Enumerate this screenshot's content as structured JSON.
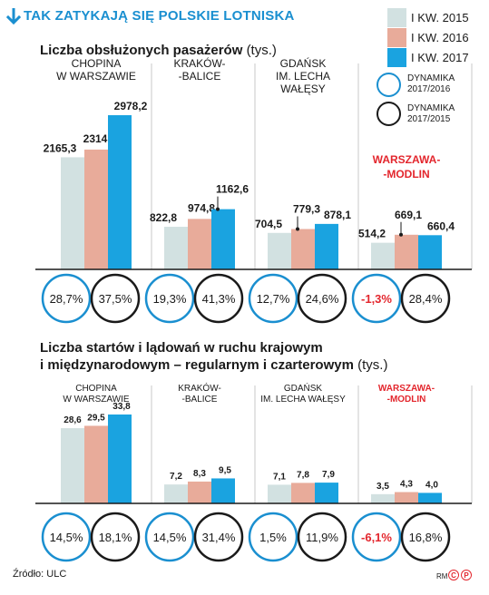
{
  "header": {
    "title": "TAK ZATYKAJĄ SIĘ POLSKIE LOTNISKA"
  },
  "legend": {
    "series": [
      {
        "label": "I KW. 2015",
        "color": "#d2e1e1"
      },
      {
        "label": "I KW. 2016",
        "color": "#e8ab9a"
      },
      {
        "label": "I KW. 2017",
        "color": "#1aa3e0"
      }
    ],
    "circles": [
      {
        "label_line1": "DYNAMIKA",
        "label_line2": "2017/2016",
        "color": "#1a8fd0"
      },
      {
        "label_line1": "DYNAMIKA",
        "label_line2": "2017/2015",
        "color": "#1a1a1a"
      }
    ]
  },
  "colors": {
    "accent": "#1a8fd0",
    "highlight": "#e3262d",
    "dark": "#1a1a1a"
  },
  "chart_data": [
    {
      "type": "bar",
      "title": "Liczba obsłużonych pasażerów",
      "unit": "(tys.)",
      "categories": [
        {
          "line1": "CHOPINA",
          "line2": "W WARSZAWIE",
          "line3": "",
          "highlight": false
        },
        {
          "line1": "KRAKÓW-",
          "line2": "-BALICE",
          "line3": "",
          "highlight": false
        },
        {
          "line1": "GDAŃSK",
          "line2": "IM. LECHA",
          "line3": "WAŁĘSY",
          "highlight": false
        },
        {
          "line1": "WARSZAWA-",
          "line2": "-MODLIN",
          "line3": "",
          "highlight": true
        }
      ],
      "series": [
        {
          "name": "I KW. 2015",
          "values": [
            2165.3,
            822.8,
            704.5,
            514.2
          ],
          "labels": [
            "2165,3",
            "822,8",
            "704,5",
            "514,2"
          ]
        },
        {
          "name": "I KW. 2016",
          "values": [
            2314.1,
            974.8,
            779.3,
            669.1
          ],
          "labels": [
            "2314,1",
            "974,8",
            "779,3",
            "669,1"
          ]
        },
        {
          "name": "I KW. 2017",
          "values": [
            2978.2,
            1162.6,
            878.1,
            660.4
          ],
          "labels": [
            "2978,2",
            "1162,6",
            "878,1",
            "660,4"
          ]
        }
      ],
      "dynamika_2017_2016": [
        "28,7%",
        "19,3%",
        "12,7%",
        "-1,3%"
      ],
      "dynamika_2017_2015": [
        "37,5%",
        "41,3%",
        "24,6%",
        "28,4%"
      ],
      "ylim": [
        0,
        2978.2
      ]
    },
    {
      "type": "bar",
      "title": "Liczba startów i lądowań w ruchu krajowym",
      "title_line2": "i międzynarodowym – regularnym i czarterowym",
      "unit": "(tys.)",
      "categories": [
        {
          "line1": "CHOPINA",
          "line2": "W WARSZAWIE",
          "line3": "",
          "highlight": false
        },
        {
          "line1": "KRAKÓW-",
          "line2": "-BALICE",
          "line3": "",
          "highlight": false
        },
        {
          "line1": "GDAŃSK",
          "line2": "IM. LECHA WAŁĘSY",
          "line3": "",
          "highlight": false
        },
        {
          "line1": "WARSZAWA-",
          "line2": "-MODLIN",
          "line3": "",
          "highlight": true
        }
      ],
      "series": [
        {
          "name": "I KW. 2015",
          "values": [
            28.6,
            7.2,
            7.1,
            3.5
          ],
          "labels": [
            "28,6",
            "7,2",
            "7,1",
            "3,5"
          ]
        },
        {
          "name": "I KW. 2016",
          "values": [
            29.5,
            8.3,
            7.8,
            4.3
          ],
          "labels": [
            "29,5",
            "8,3",
            "7,8",
            "4,3"
          ]
        },
        {
          "name": "I KW. 2017",
          "values": [
            33.8,
            9.5,
            7.9,
            4.0
          ],
          "labels": [
            "33,8",
            "9,5",
            "7,9",
            "4,0"
          ]
        }
      ],
      "dynamika_2017_2016": [
        "14,5%",
        "14,5%",
        "1,5%",
        "-6,1%"
      ],
      "dynamika_2017_2015": [
        "18,1%",
        "31,4%",
        "11,9%",
        "16,8%"
      ],
      "ylim": [
        0,
        33.8
      ]
    }
  ],
  "footer": {
    "source": "Źródło: ULC",
    "credit": "RM",
    "cp_label": "CP"
  }
}
